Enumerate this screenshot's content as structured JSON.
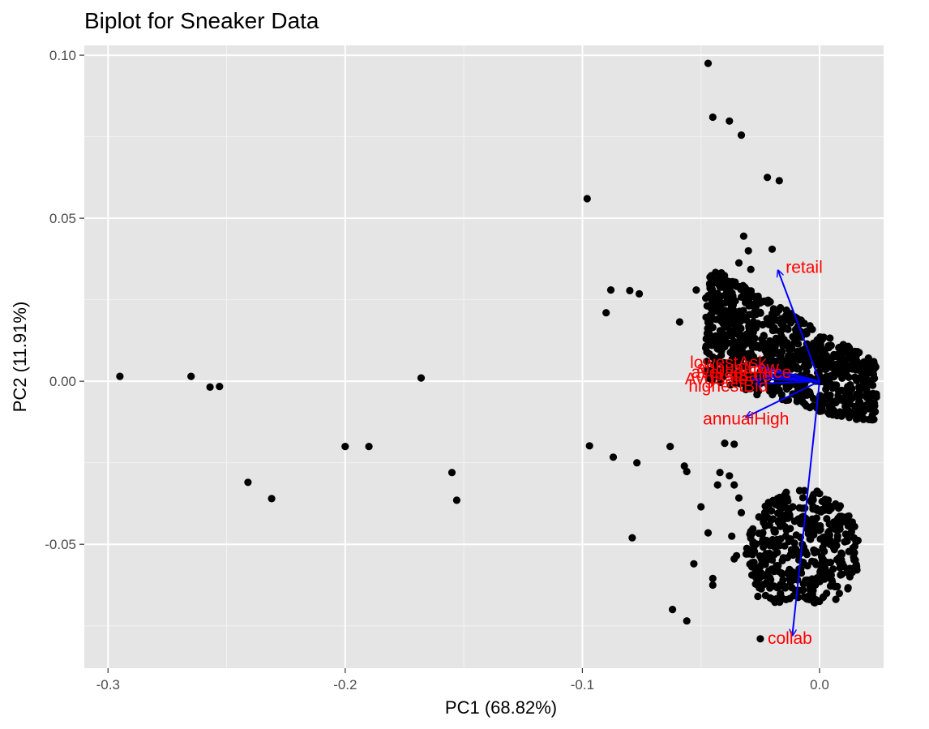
{
  "chart_data": {
    "type": "scatter",
    "title": "Biplot for Sneaker Data",
    "xlabel": "PC1 (68.82%)",
    "ylabel": "PC2 (11.91%)",
    "xlim": [
      -0.31,
      0.027
    ],
    "ylim": [
      -0.088,
      0.103
    ],
    "x_ticks": [
      -0.3,
      -0.2,
      -0.1,
      0.0
    ],
    "x_tick_labels": [
      "-0.3",
      "-0.2",
      "-0.1",
      "0.0"
    ],
    "y_ticks": [
      -0.05,
      0.0,
      0.05,
      0.1
    ],
    "y_tick_labels": [
      "-0.05",
      "0.00",
      "0.05",
      "0.10"
    ],
    "grid": true,
    "point_color": "#000000",
    "arrow_color": "#0000ff",
    "label_color": "#ff0000",
    "panel_color": "#e5e5e5",
    "points": [
      [
        -0.295,
        0.0015
      ],
      [
        -0.265,
        0.0015
      ],
      [
        -0.257,
        -0.0018
      ],
      [
        -0.253,
        -0.0016
      ],
      [
        -0.241,
        -0.031
      ],
      [
        -0.231,
        -0.036
      ],
      [
        -0.2,
        -0.02
      ],
      [
        -0.19,
        -0.02
      ],
      [
        -0.168,
        0.001
      ],
      [
        -0.155,
        -0.028
      ],
      [
        -0.153,
        -0.0365
      ],
      [
        -0.098,
        0.056
      ],
      [
        -0.097,
        -0.0198
      ],
      [
        -0.088,
        0.028
      ],
      [
        -0.09,
        0.021
      ],
      [
        -0.087,
        -0.0233
      ],
      [
        -0.08,
        0.0278
      ],
      [
        -0.076,
        0.0268
      ],
      [
        -0.077,
        -0.025
      ],
      [
        -0.079,
        -0.048
      ],
      [
        -0.059,
        0.0182
      ],
      [
        -0.063,
        -0.02
      ],
      [
        -0.057,
        -0.026
      ],
      [
        -0.056,
        -0.0277
      ],
      [
        -0.052,
        0.028
      ],
      [
        -0.05,
        -0.0385
      ],
      [
        -0.047,
        -0.0465
      ],
      [
        -0.053,
        -0.056
      ],
      [
        -0.045,
        -0.0625
      ],
      [
        -0.062,
        -0.07
      ],
      [
        -0.056,
        -0.0735
      ],
      [
        -0.047,
        0.0975
      ],
      [
        -0.045,
        0.081
      ],
      [
        -0.038,
        0.0798
      ],
      [
        -0.033,
        0.0755
      ],
      [
        -0.022,
        0.0625
      ],
      [
        -0.017,
        0.0615
      ],
      [
        -0.026,
        -0.066
      ],
      [
        -0.025,
        -0.079
      ],
      [
        -0.048,
        0.0255
      ],
      [
        -0.045,
        0.0165
      ],
      [
        -0.044,
        0.0118
      ],
      [
        -0.042,
        -0.028
      ],
      [
        -0.043,
        -0.0318
      ],
      [
        -0.04,
        -0.019
      ],
      [
        -0.036,
        -0.0193
      ],
      [
        -0.038,
        -0.029
      ],
      [
        -0.036,
        -0.0318
      ],
      [
        -0.034,
        -0.0358
      ],
      [
        -0.033,
        -0.0403
      ],
      [
        -0.037,
        -0.0475
      ],
      [
        -0.035,
        -0.0535
      ],
      [
        -0.036,
        -0.0545
      ],
      [
        -0.045,
        -0.0605
      ],
      [
        -0.03,
        0.04
      ],
      [
        -0.032,
        0.0445
      ],
      [
        -0.034,
        0.0363
      ],
      [
        -0.029,
        0.0343
      ],
      [
        -0.02,
        0.0405
      ]
    ],
    "cluster_top": {
      "x": [
        -0.048,
        0.024
      ],
      "y": [
        -0.012,
        0.036
      ]
    },
    "cluster_bottom": {
      "x": [
        -0.032,
        0.017
      ],
      "y": [
        -0.068,
        -0.032
      ]
    },
    "arrows": [
      {
        "label": "retail",
        "x": -0.0175,
        "y": 0.034,
        "label_x": -0.0065,
        "label_y": 0.035
      },
      {
        "label": "collab",
        "x": -0.0115,
        "y": -0.078,
        "label_x": -0.0125,
        "label_y": -0.0788
      },
      {
        "label": "annualHigh",
        "x": -0.031,
        "y": -0.011,
        "label_x": -0.031,
        "label_y": -0.0115
      },
      {
        "label": "lowestAsk",
        "x": -0.026,
        "y": 0.0048,
        "label_x": -0.0385,
        "label_y": 0.0058
      },
      {
        "label": "annualLow",
        "x": -0.023,
        "y": 0.0035,
        "label_x": -0.0345,
        "label_y": 0.0042
      },
      {
        "label": "averagePrice",
        "x": -0.024,
        "y": 0.0022,
        "label_x": -0.033,
        "label_y": 0.0028
      },
      {
        "label": "lastSale",
        "x": -0.022,
        "y": 0.0015,
        "label_x": -0.033,
        "label_y": 0.0018
      },
      {
        "label": "AvgSale",
        "x": -0.028,
        "y": 0.0008,
        "label_x": -0.0435,
        "label_y": 0.0008
      },
      {
        "label": "highestBid",
        "x": -0.027,
        "y": -0.0008,
        "label_x": -0.0385,
        "label_y": -0.0015
      }
    ]
  }
}
